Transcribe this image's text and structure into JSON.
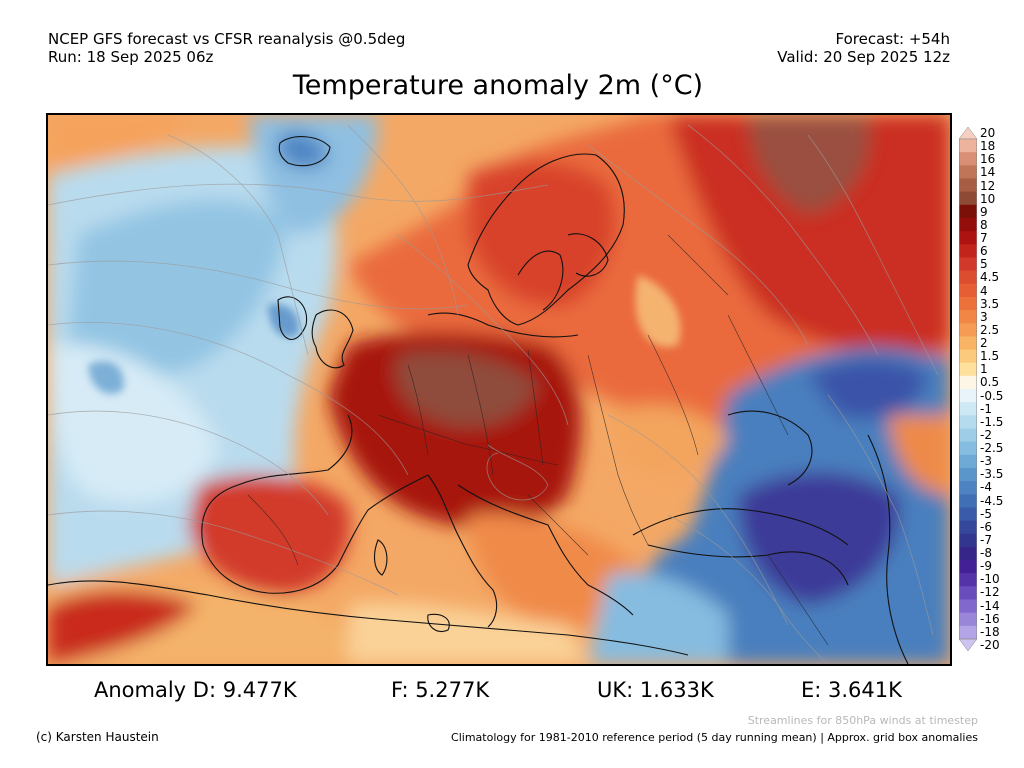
{
  "header": {
    "model_line": "NCEP GFS forecast vs CFSR reanalysis @0.5deg",
    "run_line": "Run: 18 Sep 2025 06z",
    "forecast_line": "Forecast: +54h",
    "valid_line": "Valid: 20 Sep 2025 12z"
  },
  "title": "Temperature anomaly 2m (°C)",
  "colorbar": {
    "labels": [
      "20",
      "18",
      "16",
      "14",
      "12",
      "10",
      "9",
      "8",
      "7",
      "6",
      "5",
      "4.5",
      "4",
      "3.5",
      "3",
      "2.5",
      "2",
      "1.5",
      "1",
      "0.5",
      "-0.5",
      "-1",
      "-1.5",
      "-2",
      "-2.5",
      "-3",
      "-3.5",
      "-4",
      "-4.5",
      "-5",
      "-6",
      "-7",
      "-8",
      "-9",
      "-10",
      "-12",
      "-14",
      "-16",
      "-18",
      "-20"
    ],
    "colors": [
      "#f6cfc0",
      "#eeb39c",
      "#d98f75",
      "#c07558",
      "#a75d44",
      "#8e4a35",
      "#7a1008",
      "#930d0b",
      "#ad1411",
      "#c2231a",
      "#d1392a",
      "#dc4c2f",
      "#e55e34",
      "#ec713b",
      "#f28645",
      "#f59b53",
      "#f8b365",
      "#fbca7c",
      "#fde19c",
      "#fdf6e6",
      "#e8f4fa",
      "#cfe8f5",
      "#b5dbee",
      "#9dcde7",
      "#84bddf",
      "#6eaad5",
      "#5b96cb",
      "#4c83c0",
      "#416fb5",
      "#3a5ba9",
      "#35479b",
      "#33368e",
      "#36268a",
      "#432095",
      "#5433a8",
      "#6a4dbd",
      "#8068cc",
      "#9a86d9",
      "#b3a4e6",
      "#cdc3f0"
    ]
  },
  "stats": {
    "d": "Anomaly D: 9.477K",
    "f": "F: 5.277K",
    "uk": "UK: 1.633K",
    "e": "E: 3.641K"
  },
  "footer": {
    "streamlines": "Streamlines for 850hPa winds at timestep",
    "copyright": "(c) Karsten Haustein",
    "climatology": "Climatology for 1981-2010 reference period (5 day running mean) | Approx. grid box anomalies"
  }
}
